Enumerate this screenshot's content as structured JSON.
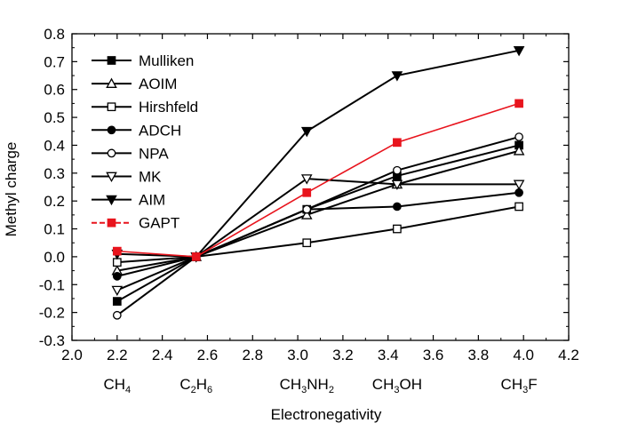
{
  "chart_data": {
    "type": "line",
    "xlabel": "Electronegativity",
    "ylabel": "Methyl charge",
    "xlim": [
      2.0,
      4.2
    ],
    "ylim": [
      -0.3,
      0.8
    ],
    "x_ticks": [
      "2.0",
      "2.2",
      "2.4",
      "2.6",
      "2.8",
      "3.0",
      "3.2",
      "3.4",
      "3.6",
      "3.8",
      "4.0",
      "4.2"
    ],
    "y_ticks": [
      "-0.3",
      "-0.2",
      "-0.1",
      "0.0",
      "0.1",
      "0.2",
      "0.3",
      "0.4",
      "0.5",
      "0.6",
      "0.7",
      "0.8"
    ],
    "grid": false,
    "legend_position": "top-left",
    "molecules": [
      {
        "x": 2.2,
        "base": "CH",
        "sub": "4",
        "rest": ""
      },
      {
        "x": 2.55,
        "base": "C",
        "sub": "2",
        "rest": "H",
        "sub2": "6"
      },
      {
        "x": 3.04,
        "base": "CH",
        "sub": "3",
        "rest": "NH",
        "sub2": "2"
      },
      {
        "x": 3.44,
        "base": "CH",
        "sub": "3",
        "rest": "OH"
      },
      {
        "x": 3.98,
        "base": "CH",
        "sub": "3",
        "rest": "F"
      }
    ],
    "x": [
      2.2,
      2.55,
      3.04,
      3.44,
      3.98
    ],
    "series": [
      {
        "name": "Mulliken",
        "marker": "square-filled",
        "color": "#000000",
        "values": [
          -0.16,
          0.0,
          0.17,
          0.29,
          0.4
        ]
      },
      {
        "name": "AOIM",
        "marker": "triangle-up-open",
        "color": "#000000",
        "values": [
          -0.05,
          0.0,
          0.15,
          0.26,
          0.38
        ]
      },
      {
        "name": "Hirshfeld",
        "marker": "square-open",
        "color": "#000000",
        "values": [
          -0.02,
          0.0,
          0.05,
          0.1,
          0.18
        ]
      },
      {
        "name": "ADCH",
        "marker": "circle-filled",
        "color": "#000000",
        "values": [
          -0.07,
          0.0,
          0.17,
          0.18,
          0.23
        ]
      },
      {
        "name": "NPA",
        "marker": "circle-open",
        "color": "#000000",
        "values": [
          -0.21,
          0.0,
          0.17,
          0.31,
          0.43
        ]
      },
      {
        "name": "MK",
        "marker": "triangle-down-open",
        "color": "#000000",
        "values": [
          -0.12,
          0.0,
          0.28,
          0.26,
          0.26
        ]
      },
      {
        "name": "AIM",
        "marker": "triangle-down-filled",
        "color": "#000000",
        "values": [
          0.01,
          0.0,
          0.45,
          0.65,
          0.74
        ]
      },
      {
        "name": "GAPT",
        "marker": "square-filled",
        "color": "#e8141d",
        "dashed": true,
        "values": [
          0.02,
          0.0,
          0.23,
          0.41,
          0.55
        ]
      }
    ]
  }
}
